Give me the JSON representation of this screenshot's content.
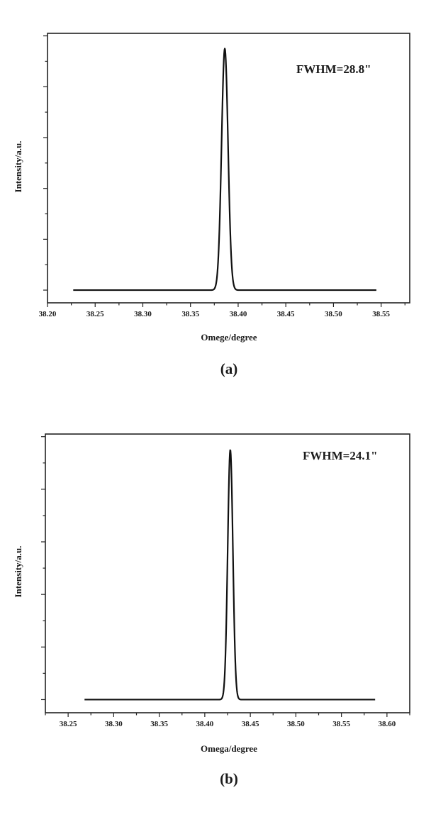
{
  "chart_data": [
    {
      "type": "line",
      "panel_label": "(a)",
      "title": "",
      "xlabel": "Omege/degree",
      "ylabel": "Intensity/a.u.",
      "annotation": "FWHM=28.8\"",
      "xlim": [
        38.2,
        38.58
      ],
      "ylim": [
        0,
        1.06
      ],
      "x_ticks": [
        "38.20",
        "38.25",
        "38.30",
        "38.35",
        "38.40",
        "38.45",
        "38.50",
        "38.55"
      ],
      "y_tick_labels": [],
      "grid": false,
      "series": [
        {
          "x_range": [
            38.227,
            38.545
          ],
          "peak_center": 38.386,
          "fwhm_deg": 0.008,
          "baseline": 0.05,
          "peak": 1.0
        }
      ]
    },
    {
      "type": "line",
      "panel_label": "(b)",
      "title": "",
      "xlabel": "Omega/degree",
      "ylabel": "Intensity/a.u.",
      "annotation": "FWHM=24.1\"",
      "xlim": [
        38.225,
        38.625
      ],
      "ylim": [
        0,
        1.06
      ],
      "x_ticks": [
        "38.25",
        "38.30",
        "38.35",
        "38.40",
        "38.45",
        "38.50",
        "38.55",
        "38.60"
      ],
      "y_tick_labels": [],
      "grid": false,
      "series": [
        {
          "x_range": [
            38.268,
            38.587
          ],
          "peak_center": 38.428,
          "fwhm_deg": 0.0067,
          "baseline": 0.05,
          "peak": 1.0
        }
      ]
    }
  ]
}
